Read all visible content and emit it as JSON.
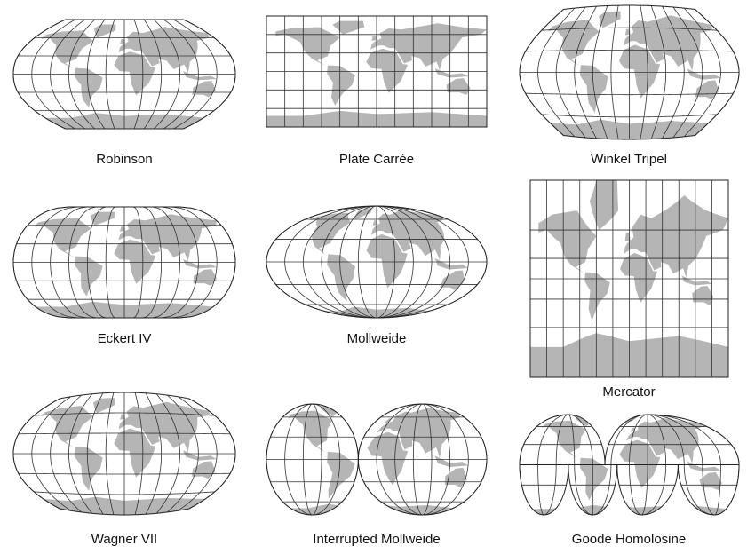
{
  "panels": [
    {
      "label": "Robinson"
    },
    {
      "label": "Plate Carrée"
    },
    {
      "label": "Winkel Tripel"
    },
    {
      "label": "Eckert IV"
    },
    {
      "label": "Mollweide"
    },
    {
      "label": "Mercator"
    },
    {
      "label": "Wagner VII"
    },
    {
      "label": "Interrupted Mollweide"
    },
    {
      "label": "Goode Homolosine"
    }
  ]
}
